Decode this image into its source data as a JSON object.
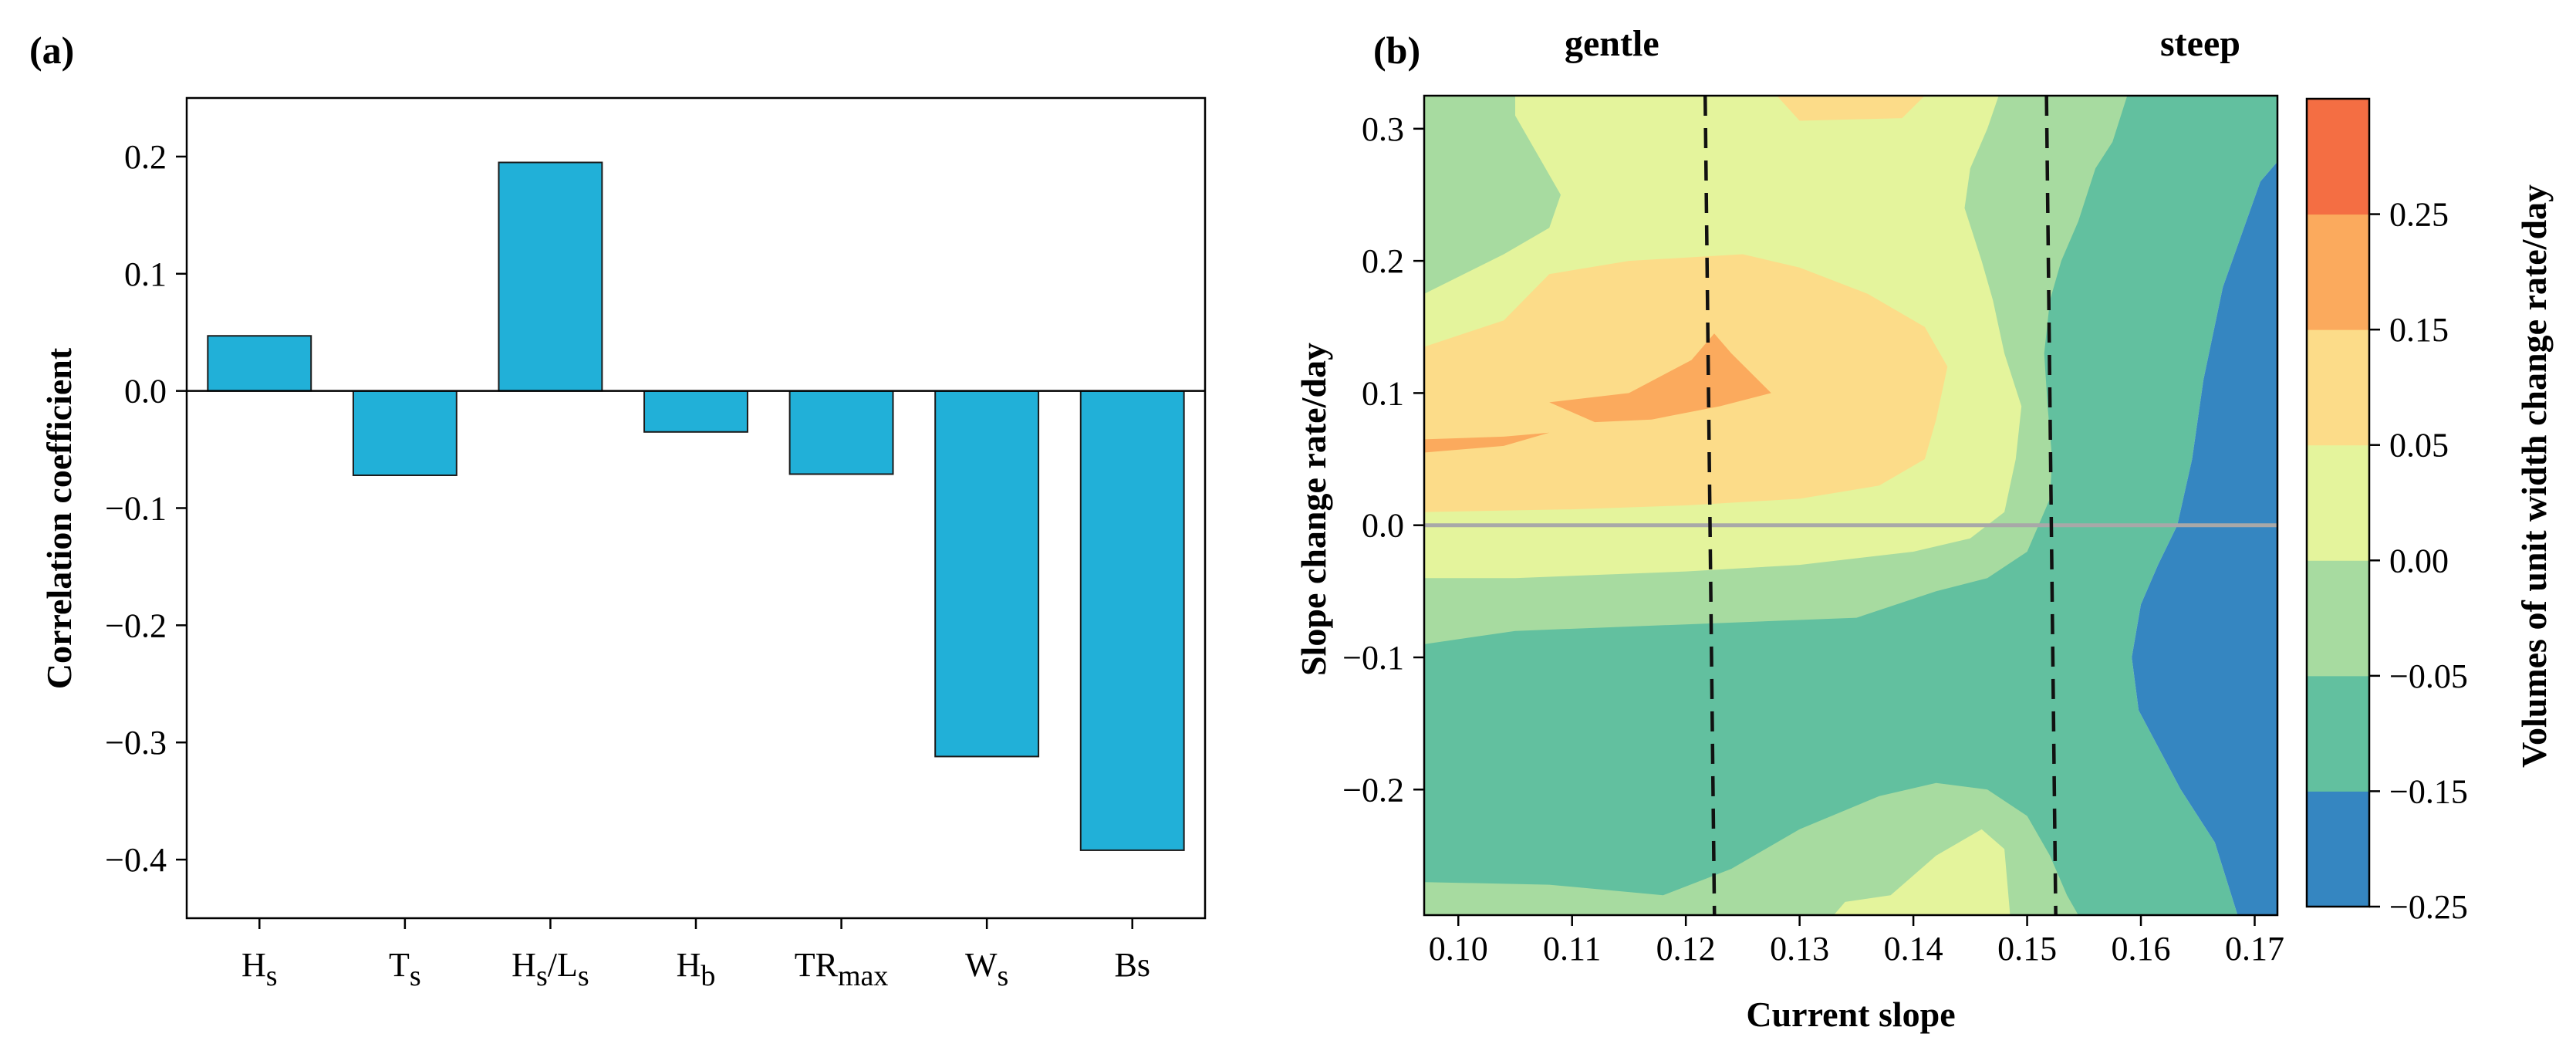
{
  "chart_data": [
    {
      "panel": "(a)",
      "type": "bar",
      "title": "",
      "xlabel": "",
      "ylabel": "Correlation coefficient",
      "ylim": [
        -0.45,
        0.25
      ],
      "yticks": [
        0.2,
        0.1,
        0.0,
        -0.1,
        -0.2,
        -0.3,
        -0.4
      ],
      "ytick_labels": [
        "0.2",
        "0.1",
        "0.0",
        "−0.1",
        "−0.2",
        "−0.3",
        "−0.4"
      ],
      "categories": [
        {
          "base": "H",
          "sub": "s",
          "mid": "",
          "sub2": ""
        },
        {
          "base": "T",
          "sub": "s",
          "mid": "",
          "sub2": ""
        },
        {
          "base": "H",
          "sub": "s",
          "mid": "/L",
          "sub2": "s"
        },
        {
          "base": "H",
          "sub": "b",
          "mid": "",
          "sub2": ""
        },
        {
          "base": "TR",
          "sub": "max",
          "mid": "",
          "sub2": ""
        },
        {
          "base": "W",
          "sub": "s",
          "mid": "",
          "sub2": ""
        },
        {
          "base": "Bs",
          "sub": "",
          "mid": "",
          "sub2": ""
        }
      ],
      "values": [
        0.047,
        -0.072,
        0.195,
        -0.035,
        -0.071,
        -0.312,
        -0.392
      ],
      "bar_color": "#21b0d8",
      "grid": false,
      "zero_line": true
    },
    {
      "panel": "(b)",
      "type": "heatmap",
      "title": "",
      "xlabel": "Current slope",
      "ylabel": "Slope change rate/day",
      "xlim": [
        0.097,
        0.172
      ],
      "ylim": [
        -0.295,
        0.325
      ],
      "xticks": [
        0.1,
        0.11,
        0.12,
        0.13,
        0.14,
        0.15,
        0.16,
        0.17
      ],
      "xtick_labels": [
        "0.10",
        "0.11",
        "0.12",
        "0.13",
        "0.14",
        "0.15",
        "0.16",
        "0.17"
      ],
      "yticks": [
        0.3,
        0.2,
        0.1,
        0.0,
        -0.1,
        -0.2
      ],
      "ytick_labels": [
        "0.3",
        "0.2",
        "0.1",
        "0.0",
        "−0.1",
        "−0.2"
      ],
      "annotations": {
        "left": "gentle",
        "right": "steep"
      },
      "dashed_lines_x": [
        0.1217,
        0.1517
      ],
      "colorbar": {
        "label": "Volumes of unit width change rate/day",
        "levels": [
          -0.25,
          -0.15,
          -0.05,
          0.0,
          0.05,
          0.15,
          0.25
        ],
        "level_labels": [
          "−0.25",
          "−0.15",
          "−0.05",
          "0.00",
          "0.05",
          "0.15",
          "0.25"
        ],
        "colors": [
          "#3586c1",
          "#62c09f",
          "#a7dba0",
          "#e4f49c",
          "#fcdc89",
          "#fbaa5d",
          "#f46e43"
        ]
      },
      "regions": [
        {
          "level": 1,
          "color": "#62c09f",
          "polygon": [
            [
              0.097,
              -0.295
            ],
            [
              0.1685,
              -0.295
            ],
            [
              0.1665,
              -0.24
            ],
            [
              0.1635,
              -0.2
            ],
            [
              0.1598,
              -0.14
            ],
            [
              0.1592,
              -0.1
            ],
            [
              0.16,
              -0.06
            ],
            [
              0.1615,
              -0.03
            ],
            [
              0.1632,
              0.0
            ],
            [
              0.1645,
              0.05
            ],
            [
              0.1655,
              0.11
            ],
            [
              0.1672,
              0.18
            ],
            [
              0.1705,
              0.26
            ],
            [
              0.172,
              0.275
            ],
            [
              0.172,
              0.325
            ],
            [
              0.097,
              0.325
            ]
          ]
        },
        {
          "level": 2,
          "color": "#a7dba0",
          "polygon": [
            [
              0.097,
              0.325
            ],
            [
              0.1588,
              0.325
            ],
            [
              0.1575,
              0.29
            ],
            [
              0.156,
              0.27
            ],
            [
              0.1545,
              0.23
            ],
            [
              0.153,
              0.2
            ],
            [
              0.152,
              0.17
            ],
            [
              0.1515,
              0.13
            ],
            [
              0.1518,
              0.09
            ],
            [
              0.1522,
              0.05
            ],
            [
              0.152,
              0.02
            ],
            [
              0.15,
              -0.02
            ],
            [
              0.1465,
              -0.04
            ],
            [
              0.142,
              -0.05
            ],
            [
              0.135,
              -0.07
            ],
            [
              0.12,
              -0.075
            ],
            [
              0.105,
              -0.08
            ],
            [
              0.097,
              -0.09
            ]
          ]
        },
        {
          "level": 2,
          "color": "#a7dba0",
          "polygon": [
            [
              0.097,
              -0.27
            ],
            [
              0.108,
              -0.272
            ],
            [
              0.118,
              -0.28
            ],
            [
              0.124,
              -0.26
            ],
            [
              0.13,
              -0.23
            ],
            [
              0.137,
              -0.205
            ],
            [
              0.142,
              -0.195
            ],
            [
              0.1465,
              -0.2
            ],
            [
              0.15,
              -0.22
            ],
            [
              0.152,
              -0.25
            ],
            [
              0.1535,
              -0.28
            ],
            [
              0.1545,
              -0.295
            ],
            [
              0.097,
              -0.295
            ]
          ]
        },
        {
          "level": 3,
          "color": "#e4f49c",
          "polygon": [
            [
              0.097,
              0.175
            ],
            [
              0.104,
              0.205
            ],
            [
              0.108,
              0.225
            ],
            [
              0.109,
              0.25
            ],
            [
              0.107,
              0.28
            ],
            [
              0.105,
              0.31
            ],
            [
              0.105,
              0.325
            ],
            [
              0.1475,
              0.325
            ],
            [
              0.1465,
              0.3
            ],
            [
              0.145,
              0.27
            ],
            [
              0.1445,
              0.24
            ],
            [
              0.146,
              0.2
            ],
            [
              0.147,
              0.17
            ],
            [
              0.148,
              0.13
            ],
            [
              0.1495,
              0.09
            ],
            [
              0.149,
              0.05
            ],
            [
              0.148,
              0.01
            ],
            [
              0.145,
              -0.01
            ],
            [
              0.14,
              -0.02
            ],
            [
              0.13,
              -0.03
            ],
            [
              0.12,
              -0.035
            ],
            [
              0.105,
              -0.04
            ],
            [
              0.097,
              -0.04
            ]
          ]
        },
        {
          "level": 3,
          "color": "#e4f49c",
          "polygon": [
            [
              0.134,
              -0.285
            ],
            [
              0.138,
              -0.28
            ],
            [
              0.142,
              -0.25
            ],
            [
              0.146,
              -0.23
            ],
            [
              0.148,
              -0.245
            ],
            [
              0.1485,
              -0.295
            ],
            [
              0.133,
              -0.295
            ]
          ]
        },
        {
          "level": 4,
          "color": "#fcdc89",
          "polygon": [
            [
              0.097,
              0.135
            ],
            [
              0.104,
              0.155
            ],
            [
              0.108,
              0.19
            ],
            [
              0.115,
              0.2
            ],
            [
              0.125,
              0.205
            ],
            [
              0.13,
              0.195
            ],
            [
              0.136,
              0.175
            ],
            [
              0.141,
              0.15
            ],
            [
              0.143,
              0.12
            ],
            [
              0.142,
              0.08
            ],
            [
              0.141,
              0.05
            ],
            [
              0.137,
              0.03
            ],
            [
              0.13,
              0.02
            ],
            [
              0.12,
              0.015
            ],
            [
              0.11,
              0.012
            ],
            [
              0.097,
              0.01
            ]
          ]
        },
        {
          "level": 4,
          "color": "#fcdc89",
          "polygon": [
            [
              0.128,
              0.325
            ],
            [
              0.141,
              0.325
            ],
            [
              0.139,
              0.308
            ],
            [
              0.13,
              0.306
            ]
          ]
        },
        {
          "level": 5,
          "color": "#fbaa5d",
          "polygon": [
            [
              0.108,
              0.093
            ],
            [
              0.115,
              0.1
            ],
            [
              0.1205,
              0.125
            ],
            [
              0.1225,
              0.145
            ],
            [
              0.124,
              0.13
            ],
            [
              0.1275,
              0.1
            ],
            [
              0.123,
              0.09
            ],
            [
              0.117,
              0.08
            ],
            [
              0.112,
              0.078
            ]
          ]
        },
        {
          "level": 5,
          "color": "#fbaa5d",
          "polygon": [
            [
              0.097,
              0.065
            ],
            [
              0.104,
              0.067
            ],
            [
              0.108,
              0.07
            ],
            [
              0.104,
              0.06
            ],
            [
              0.097,
              0.055
            ]
          ]
        },
        {
          "level": 0,
          "color": "#3586c1",
          "polygon": [
            [
              0.172,
              -0.295
            ],
            [
              0.1685,
              -0.295
            ],
            [
              0.1665,
              -0.24
            ],
            [
              0.1635,
              -0.2
            ],
            [
              0.1598,
              -0.14
            ],
            [
              0.1592,
              -0.1
            ],
            [
              0.16,
              -0.06
            ],
            [
              0.1615,
              -0.03
            ],
            [
              0.1632,
              0.0
            ],
            [
              0.1645,
              0.05
            ],
            [
              0.1655,
              0.11
            ],
            [
              0.1672,
              0.18
            ],
            [
              0.1705,
              0.26
            ],
            [
              0.172,
              0.275
            ]
          ]
        }
      ]
    }
  ]
}
